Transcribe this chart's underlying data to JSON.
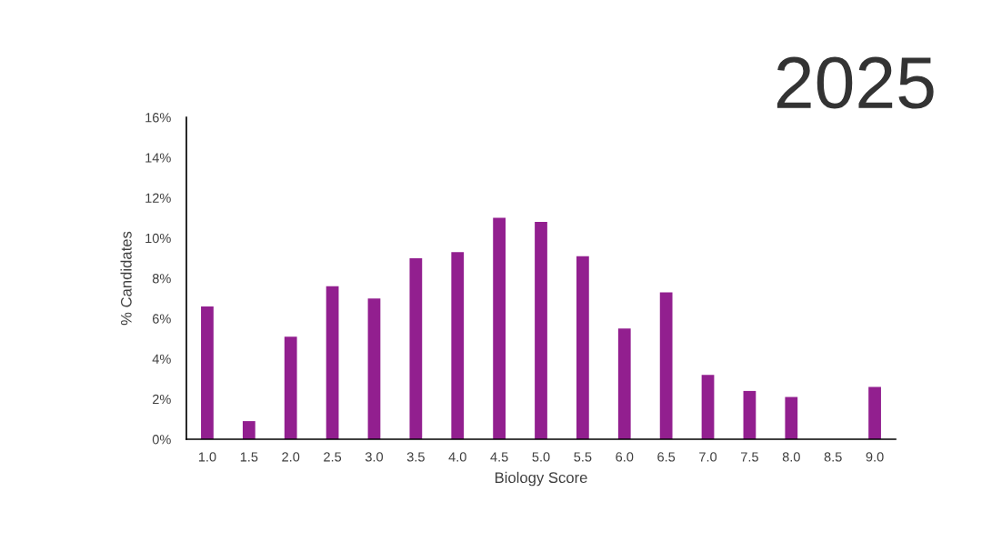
{
  "chart_data": {
    "type": "bar",
    "title": "2025",
    "xlabel": "Biology Score",
    "ylabel": "% Candidates",
    "categories": [
      "1.0",
      "1.5",
      "2.0",
      "2.5",
      "3.0",
      "3.5",
      "4.0",
      "4.5",
      "5.0",
      "5.5",
      "6.0",
      "6.5",
      "7.0",
      "7.5",
      "8.0",
      "8.5",
      "9.0"
    ],
    "values": [
      6.6,
      0.9,
      5.1,
      7.6,
      7.0,
      9.0,
      9.3,
      11.0,
      10.8,
      9.1,
      5.5,
      7.3,
      3.2,
      2.4,
      2.1,
      0,
      2.6
    ],
    "color": "#921f8f",
    "ylim": [
      0,
      16
    ],
    "yticks": [
      {
        "value": 0,
        "label": "0%"
      },
      {
        "value": 2,
        "label": "2%"
      },
      {
        "value": 4,
        "label": "4%"
      },
      {
        "value": 6,
        "label": "6%"
      },
      {
        "value": 8,
        "label": "8%"
      },
      {
        "value": 10,
        "label": "10%"
      },
      {
        "value": 12,
        "label": "12%"
      },
      {
        "value": 14,
        "label": "14%"
      },
      {
        "value": 16,
        "label": "16%"
      }
    ]
  }
}
